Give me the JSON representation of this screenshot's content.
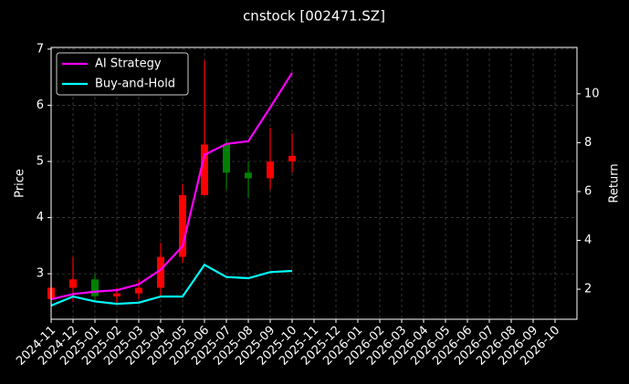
{
  "chart_data": {
    "type": "candlestick",
    "title": "cnstock [002471.SZ]",
    "ylabel": "Price",
    "y2label": "Return",
    "x": [
      "2024-11",
      "2024-12",
      "2025-01",
      "2025-02",
      "2025-03",
      "2025-04",
      "2025-05",
      "2025-06",
      "2025-07",
      "2025-08",
      "2025-09",
      "2025-10"
    ],
    "candles": {
      "open": [
        2.55,
        2.75,
        2.9,
        2.6,
        2.65,
        2.75,
        3.3,
        4.4,
        5.3,
        4.8,
        4.7,
        5.0
      ],
      "high": [
        2.95,
        3.3,
        3.0,
        2.75,
        2.9,
        3.55,
        4.6,
        6.8,
        5.4,
        5.0,
        5.6,
        5.5
      ],
      "low": [
        2.45,
        2.5,
        2.5,
        2.45,
        2.55,
        2.6,
        3.2,
        4.4,
        4.5,
        4.35,
        4.5,
        4.8
      ],
      "close": [
        2.75,
        2.9,
        2.6,
        2.65,
        2.75,
        3.3,
        4.4,
        5.3,
        4.8,
        4.7,
        5.0,
        5.1
      ],
      "up_color": "#ff0000",
      "down_color": "#008000"
    },
    "series": [
      {
        "name": "AI Strategy",
        "color": "#ff00ff",
        "axis": "y2",
        "values": [
          1.59,
          1.8,
          1.9,
          1.96,
          2.2,
          2.8,
          3.76,
          7.5,
          7.95,
          8.06,
          9.44,
          10.86
        ]
      },
      {
        "name": "Buy-and-Hold",
        "color": "#00ffff",
        "axis": "y2",
        "values": [
          1.33,
          1.7,
          1.5,
          1.4,
          1.45,
          1.7,
          1.7,
          3.0,
          2.5,
          2.45,
          2.7,
          2.75
        ]
      }
    ],
    "xlim": [
      "2024-11",
      "2026-11"
    ],
    "xticks": [
      "2024-11",
      "2024-12",
      "2025-01",
      "2025-02",
      "2025-03",
      "2025-04",
      "2025-05",
      "2025-06",
      "2025-07",
      "2025-08",
      "2025-09",
      "2025-10",
      "2025-11",
      "2025-12",
      "2026-01",
      "2026-02",
      "2026-03",
      "2026-04",
      "2026-05",
      "2026-06",
      "2026-07",
      "2026-08",
      "2026-09",
      "2026-10"
    ],
    "ylim": [
      2.19,
      7.03
    ],
    "yticks": [
      3,
      4,
      5,
      6,
      7
    ],
    "y2lim": [
      0.77,
      11.9
    ],
    "y2ticks": [
      2,
      4,
      6,
      8,
      10
    ],
    "grid": true,
    "legend": "upper left"
  }
}
